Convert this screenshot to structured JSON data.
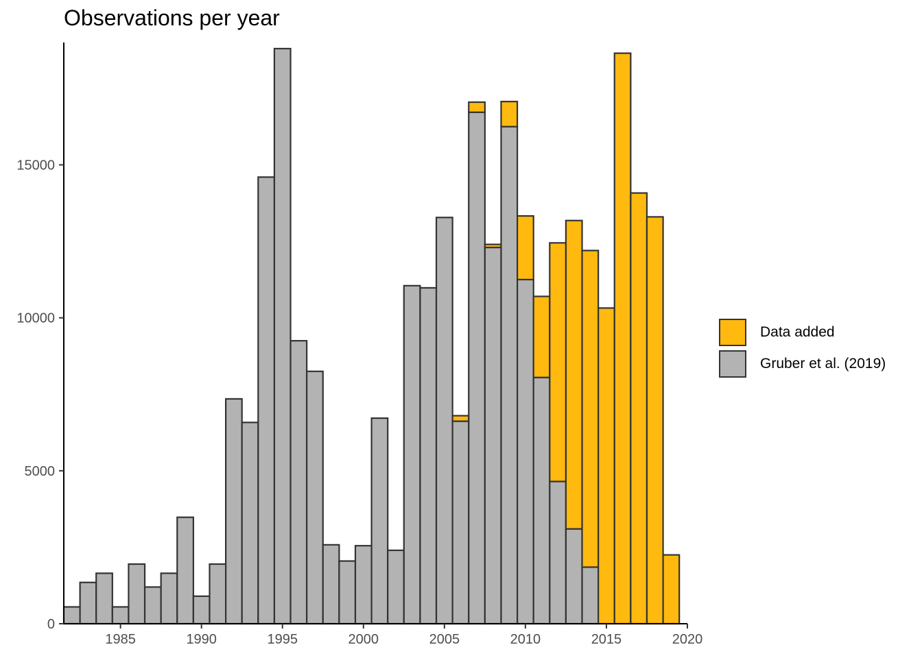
{
  "chart_data": {
    "type": "bar",
    "stacked": true,
    "title": "Observations per year",
    "xlabel": "",
    "ylabel": "",
    "x": [
      1982,
      1983,
      1984,
      1985,
      1986,
      1987,
      1988,
      1989,
      1990,
      1991,
      1992,
      1993,
      1994,
      1995,
      1996,
      1997,
      1998,
      1999,
      2000,
      2001,
      2002,
      2003,
      2004,
      2005,
      2006,
      2007,
      2008,
      2009,
      2010,
      2011,
      2012,
      2013,
      2014,
      2015,
      2016,
      2017,
      2018,
      2019
    ],
    "series": [
      {
        "name": "Gruber et al. (2019)",
        "color": "#b3b3b3",
        "values": [
          550,
          1350,
          1650,
          550,
          1950,
          1200,
          1650,
          3480,
          900,
          1950,
          7350,
          6580,
          14600,
          18800,
          9250,
          8250,
          2580,
          2050,
          2550,
          6720,
          2400,
          11050,
          10980,
          13280,
          6620,
          16720,
          12300,
          16250,
          11250,
          8050,
          4650,
          3100,
          1850,
          0,
          0,
          0,
          0,
          0
        ]
      },
      {
        "name": "Data added",
        "color": "#ffb90f",
        "values": [
          0,
          0,
          0,
          0,
          0,
          0,
          0,
          0,
          0,
          0,
          0,
          0,
          0,
          0,
          0,
          0,
          0,
          0,
          0,
          0,
          0,
          0,
          0,
          0,
          180,
          330,
          100,
          820,
          2080,
          2650,
          7800,
          10080,
          10350,
          10320,
          18650,
          14080,
          13300,
          2250
        ]
      }
    ],
    "xlim": [
      1981.5,
      2020
    ],
    "ylim": [
      0,
      19000
    ],
    "xticks": [
      1985,
      1990,
      1995,
      2000,
      2005,
      2010,
      2015,
      2020
    ],
    "yticks": [
      0,
      5000,
      10000,
      15000
    ],
    "grid": false,
    "legend_position": "right"
  },
  "legend": {
    "items": [
      {
        "label": "Data added",
        "color": "#ffb90f"
      },
      {
        "label": "Gruber et al. (2019)",
        "color": "#b3b3b3"
      }
    ]
  }
}
